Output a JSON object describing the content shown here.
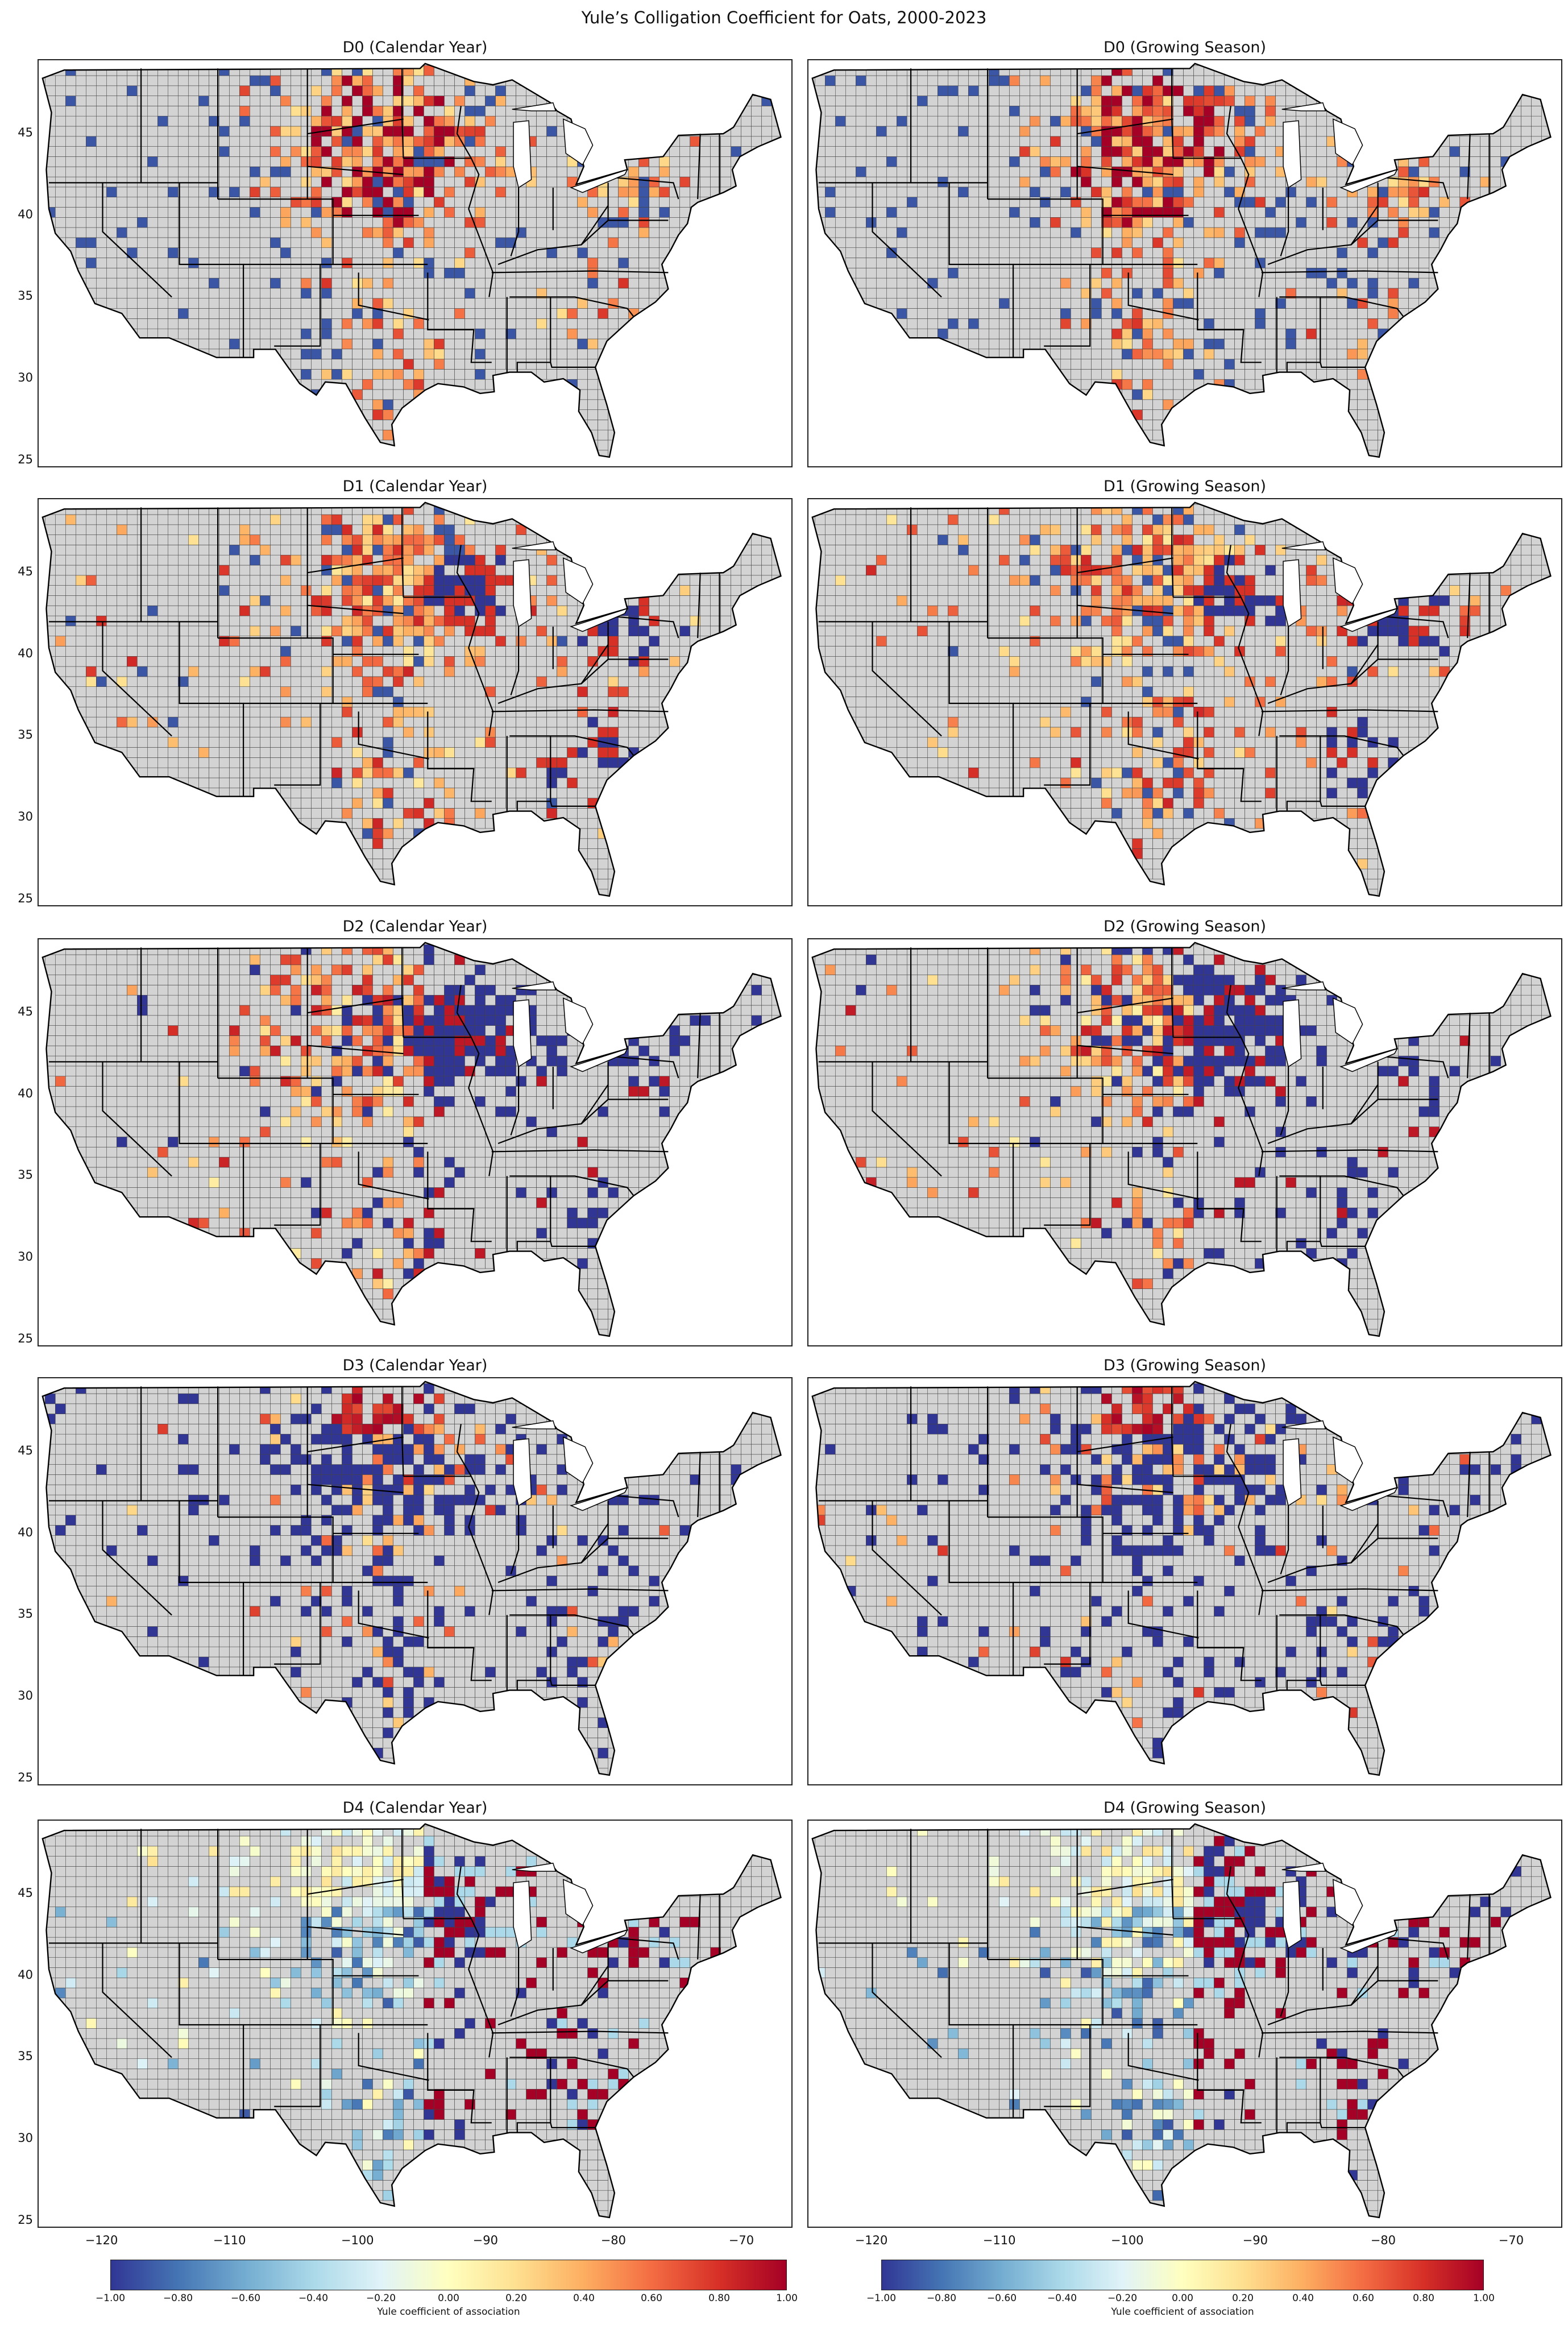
{
  "figure": {
    "title": "Yule’s Colligation Coefficient for Oats, 2000-2023"
  },
  "axes": {
    "yticks": [
      "45",
      "40",
      "35",
      "30",
      "25"
    ],
    "xticks": [
      "−120",
      "−110",
      "−100",
      "−90",
      "−80",
      "−70"
    ],
    "lon_range": [
      -125,
      -66
    ],
    "lat_range": [
      24.5,
      49.5
    ]
  },
  "panels": [
    {
      "title": "D0 (Calendar Year)",
      "drought_level": "D0",
      "period": "Calendar Year",
      "pattern": "strong positive association across the northern and central plains"
    },
    {
      "title": "D0 (Growing Season)",
      "drought_level": "D0",
      "period": "Growing Season",
      "pattern": "strong positive association across the northern and central plains"
    },
    {
      "title": "D1 (Calendar Year)",
      "drought_level": "D1",
      "period": "Calendar Year",
      "pattern": "positive in the plains, negative patches in the east"
    },
    {
      "title": "D1 (Growing Season)",
      "drought_level": "D1",
      "period": "Growing Season",
      "pattern": "positive in the plains, negative patches in the east"
    },
    {
      "title": "D2 (Calendar Year)",
      "drought_level": "D2",
      "period": "Calendar Year",
      "pattern": "positive in the northern plains, negative in the upper midwest"
    },
    {
      "title": "D2 (Growing Season)",
      "drought_level": "D2",
      "period": "Growing Season",
      "pattern": "positive in the northern plains, negative in the upper midwest"
    },
    {
      "title": "D3 (Calendar Year)",
      "drought_level": "D3",
      "period": "Calendar Year",
      "pattern": "mostly negative, with positive counties in North Dakota"
    },
    {
      "title": "D3 (Growing Season)",
      "drought_level": "D3",
      "period": "Growing Season",
      "pattern": "mostly negative, with positive counties in North Dakota"
    },
    {
      "title": "D4 (Calendar Year)",
      "drought_level": "D4",
      "period": "Calendar Year",
      "pattern": "weak negative in the plains, mixed in the midwest and east"
    },
    {
      "title": "D4 (Growing Season)",
      "drought_level": "D4",
      "period": "Growing Season",
      "pattern": "weak negative in the plains, mixed in the midwest and east"
    }
  ],
  "colorbar": {
    "label": "Yule coefficient of association",
    "ticks": [
      "−1.00",
      "−0.80",
      "−0.60",
      "−0.40",
      "−0.20",
      "0.00",
      "0.20",
      "0.40",
      "0.60",
      "0.80",
      "1.00"
    ],
    "range": [
      -1,
      1
    ],
    "colormap": [
      "#313695",
      "#4575b4",
      "#74add1",
      "#abd9e9",
      "#e0f3f8",
      "#ffffbf",
      "#fee090",
      "#fdae61",
      "#f46d43",
      "#d73027",
      "#a50026"
    ],
    "no_data_color": "#d3d3d3"
  }
}
